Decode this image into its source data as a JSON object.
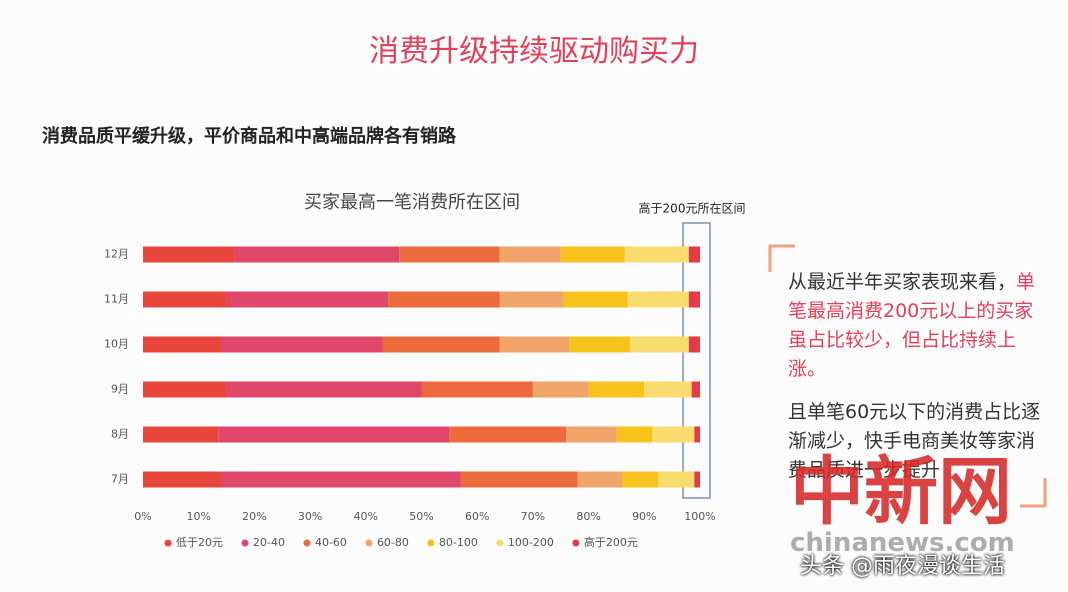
{
  "header": {
    "title": "消费升级持续驱动购买力",
    "subtitle": "消费品质平缓升级，平价商品和中高端品牌各有销路"
  },
  "chart_data": {
    "type": "stacked_bar_horizontal",
    "title": "买家最高一笔消费所在区间",
    "annotation": "高于200元所在区间",
    "categories": [
      "12月",
      "11月",
      "10月",
      "9月",
      "8月",
      "7月"
    ],
    "series": [
      {
        "name": "低于20元",
        "color": "#e8453c",
        "values": [
          16.5,
          15,
          14,
          15,
          13.5,
          14
        ]
      },
      {
        "name": "20-40",
        "color": "#e0476a",
        "values": [
          29.5,
          29,
          29,
          35,
          41.5,
          43
        ]
      },
      {
        "name": "40-60",
        "color": "#ec6a3c",
        "values": [
          18,
          20,
          21,
          20,
          21,
          21
        ]
      },
      {
        "name": "60-80",
        "color": "#f2a56a",
        "values": [
          11,
          11.5,
          12.5,
          10,
          9,
          8
        ]
      },
      {
        "name": "80-100",
        "color": "#f7c21c",
        "values": [
          11.5,
          11.5,
          11,
          10,
          6.5,
          6.5
        ]
      },
      {
        "name": "100-200",
        "color": "#f9dc6e",
        "values": [
          11.5,
          11,
          10.5,
          8.5,
          7.5,
          6.5
        ]
      },
      {
        "name": "高于200元",
        "color": "#e43a4a",
        "values": [
          2,
          2,
          2,
          1.5,
          1,
          1
        ]
      }
    ],
    "xlim": [
      0,
      100
    ],
    "xticks": [
      {
        "value": 0,
        "label": "0%"
      },
      {
        "value": 10,
        "label": "10%"
      },
      {
        "value": 20,
        "label": "20%"
      },
      {
        "value": 30,
        "label": "30%"
      },
      {
        "value": 40,
        "label": "40%"
      },
      {
        "value": 50,
        "label": "50%"
      },
      {
        "value": 60,
        "label": "60%"
      },
      {
        "value": 70,
        "label": "70%"
      },
      {
        "value": 80,
        "label": "80%"
      },
      {
        "value": 90,
        "label": "90%"
      },
      {
        "value": 100,
        "label": "100%"
      }
    ],
    "legend": "bottom"
  },
  "notes": {
    "intro": "从最近半年买家表现来看，",
    "highlight": "单笔最高消费200元以上的买家虽占比较少，但占比持续上涨。",
    "detail": "且单笔60元以下的消费占比逐渐减少，快手电商美妆等家消费品质进一步提升"
  },
  "watermark": {
    "site": "中新网",
    "url": "chinanews.com",
    "credit": "头条 @雨夜漫谈生活"
  }
}
